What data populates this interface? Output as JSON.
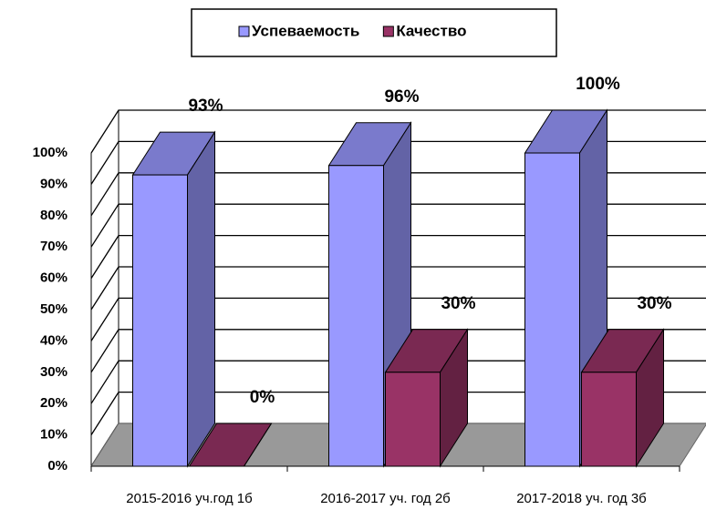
{
  "chart_data": {
    "type": "bar3d",
    "categories": [
      "2015-2016 уч.год 1б",
      "2016-2017 уч. год 2б",
      "2017-2018 уч. год 3б"
    ],
    "series": [
      {
        "name": "Успеваемость",
        "color": "#9999ff",
        "values": [
          93,
          96,
          100
        ],
        "value_labels": [
          "93%",
          "96%",
          "100%"
        ]
      },
      {
        "name": "Качество",
        "color": "#993366",
        "values": [
          0,
          30,
          30
        ],
        "value_labels": [
          "0%",
          "30%",
          "30%"
        ]
      }
    ],
    "ylim": [
      0,
      100
    ],
    "yticks": [
      {
        "value": 0,
        "label": "0%"
      },
      {
        "value": 10,
        "label": "10%"
      },
      {
        "value": 20,
        "label": "20%"
      },
      {
        "value": 30,
        "label": "30%"
      },
      {
        "value": 40,
        "label": "40%"
      },
      {
        "value": 50,
        "label": "50%"
      },
      {
        "value": 60,
        "label": "60%"
      },
      {
        "value": 70,
        "label": "70%"
      },
      {
        "value": 80,
        "label": "80%"
      },
      {
        "value": 90,
        "label": "90%"
      },
      {
        "value": 100,
        "label": "100%"
      }
    ],
    "grid": true,
    "legend": "top"
  }
}
